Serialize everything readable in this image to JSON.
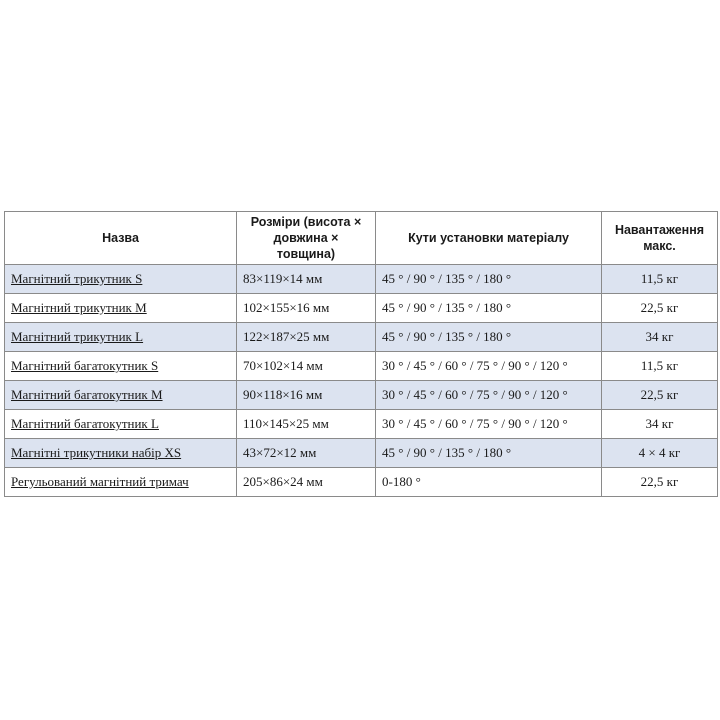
{
  "table": {
    "headers": [
      "Назва",
      "Розміри (висота × довжина × товщина)",
      "Кути установки матеріалу",
      "Навантаження макс."
    ],
    "rows": [
      {
        "name": "Магнітний трикутник S",
        "size": "83×119×14 мм",
        "angles": "45 ° / 90 ° / 135 ° / 180 °",
        "load": "11,5 кг"
      },
      {
        "name": "Магнітний трикутник M",
        "size": "102×155×16 мм",
        "angles": "45 ° / 90 ° / 135 ° / 180 °",
        "load": "22,5 кг"
      },
      {
        "name": "Магнітний трикутник L",
        "size": "122×187×25 мм",
        "angles": "45 ° / 90 ° / 135 ° / 180 °",
        "load": "34 кг"
      },
      {
        "name": "Магнітний багатокутник S",
        "size": "70×102×14 мм",
        "angles": "30 ° / 45 ° / 60 ° / 75 ° / 90 ° / 120 °",
        "load": "11,5 кг"
      },
      {
        "name": "Магнітний багатокутник M",
        "size": "90×118×16 мм",
        "angles": "30 ° / 45 ° / 60 ° / 75 ° / 90 ° / 120 °",
        "load": "22,5 кг"
      },
      {
        "name": "Магнітний багатокутник L",
        "size": "110×145×25 мм",
        "angles": "30 ° / 45 ° / 60 ° / 75 ° / 90 ° / 120 °",
        "load": "34 кг"
      },
      {
        "name": "Магнітні трикутники набір XS",
        "size": "43×72×12 мм",
        "angles": "45 ° / 90 ° / 135 ° / 180 °",
        "load": "4 × 4 кг"
      },
      {
        "name": "Регульований магнітний тримач",
        "size": "205×86×24 мм",
        "angles": "0-180 °",
        "load": "22,5 кг"
      }
    ]
  },
  "colors": {
    "row_shade": "#dce3f0",
    "border": "#8a8a8a",
    "text": "#1a1a1a"
  }
}
